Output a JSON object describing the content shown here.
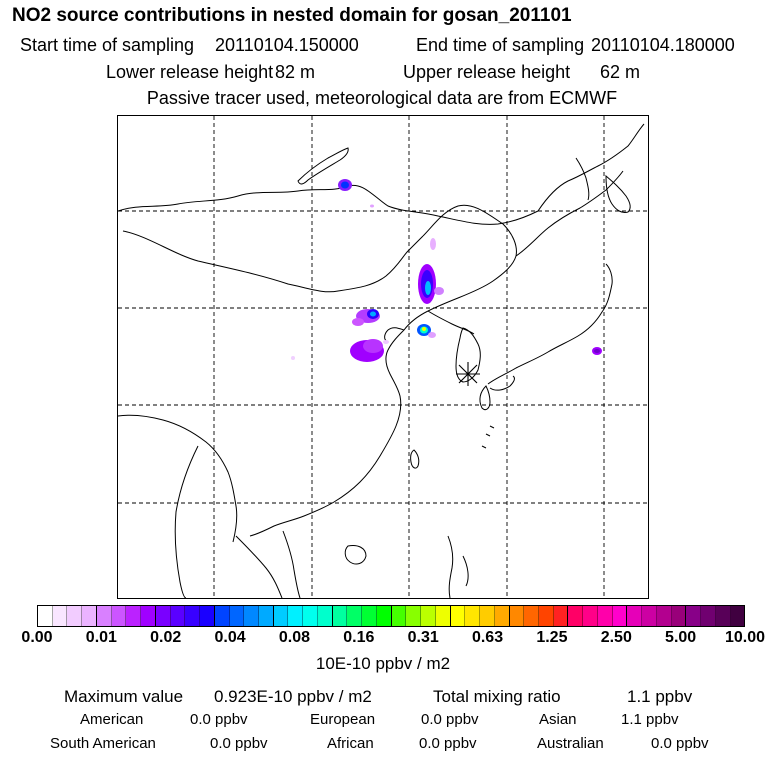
{
  "title": "NO2 source contributions in nested domain for gosan_201101",
  "header": {
    "start_label": "Start time of sampling",
    "start_value": "20110104.150000",
    "end_label": "End time of sampling",
    "end_value": "20110104.180000",
    "lower_label": "Lower release height",
    "lower_value": "82 m",
    "upper_label": "Upper release height",
    "upper_value": "62 m",
    "note": "Passive tracer used, meteorological data are from ECMWF"
  },
  "map": {
    "source_marker": "asterisk-icon",
    "plumes": [
      {
        "region": "northern Mongolia",
        "intensity": "blue"
      },
      {
        "region": "Inner Mongolia / Hebei",
        "intensity": "blue-cyan"
      },
      {
        "region": "Beijing-Tianjin",
        "intensity": "yellow-green"
      },
      {
        "region": "central China",
        "intensity": "violet"
      },
      {
        "region": "Japan",
        "intensity": "violet"
      }
    ]
  },
  "colorbar": {
    "ticks": [
      "0.00",
      "0.01",
      "0.02",
      "0.04",
      "0.08",
      "0.16",
      "0.31",
      "0.63",
      "1.25",
      "2.50",
      "5.00",
      "10.00"
    ],
    "unit": "10E-10 ppbv / m2",
    "colors": [
      "#ffffff",
      "#f9e6ff",
      "#f2ccff",
      "#ebb3ff",
      "#d980ff",
      "#cc55ff",
      "#bb22ff",
      "#a000ff",
      "#7a00ff",
      "#5a00ff",
      "#3800ff",
      "#1a00ff",
      "#0044ff",
      "#0066ff",
      "#0088ff",
      "#00aaff",
      "#00ccff",
      "#00f0ff",
      "#00ffee",
      "#00ffcc",
      "#00ffa0",
      "#00ff66",
      "#00ff33",
      "#00ff00",
      "#44ff00",
      "#88ff00",
      "#bbff00",
      "#eeff00",
      "#ffff00",
      "#ffe600",
      "#ffcc00",
      "#ffaa00",
      "#ff8800",
      "#ff6600",
      "#ff4400",
      "#ff2222",
      "#ff0066",
      "#ff0088",
      "#ff00aa",
      "#ff00cc",
      "#e600b8",
      "#cc00a3",
      "#b3008f",
      "#99007a",
      "#880088",
      "#700070",
      "#580058",
      "#400040"
    ]
  },
  "stats": {
    "max_label": "Maximum value",
    "max_value": "0.923E-10 ppbv / m2",
    "total_label": "Total mixing ratio",
    "total_value": "1.1 ppbv",
    "regions": [
      {
        "name": "American",
        "value": "0.0 ppbv"
      },
      {
        "name": "European",
        "value": "0.0 ppbv"
      },
      {
        "name": "Asian",
        "value": "1.1 ppbv"
      },
      {
        "name": "South American",
        "value": "0.0 ppbv"
      },
      {
        "name": "African",
        "value": "0.0 ppbv"
      },
      {
        "name": "Australian",
        "value": "0.0 ppbv"
      }
    ]
  }
}
